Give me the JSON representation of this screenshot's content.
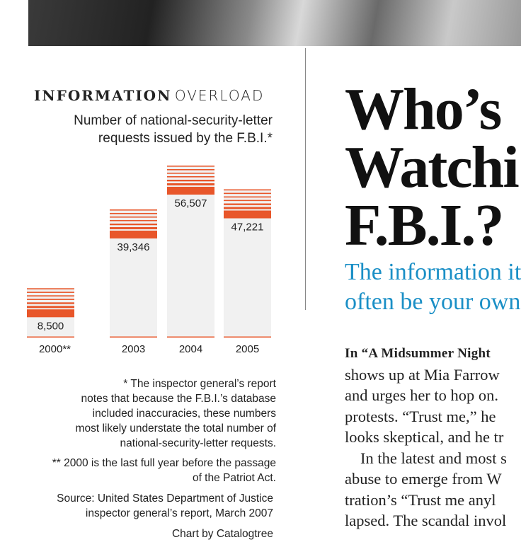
{
  "chart_data": {
    "type": "bar",
    "title_bold": "INFORMATION",
    "title_light": "OVERLOAD",
    "subtitle": [
      "Number of national-security-letter",
      "requests issued by the F.B.I.*"
    ],
    "categories": [
      "2000**",
      "2003",
      "2004",
      "2005"
    ],
    "values": [
      8500,
      39346,
      56507,
      47221
    ],
    "value_labels": [
      "8,500",
      "39,346",
      "56,507",
      "47,221"
    ],
    "color": "#e8562a",
    "footnotes": [
      [
        "* The inspector general’s report",
        "notes that because the F.B.I.’s database",
        "included inaccuracies, these numbers",
        "most likely understate the total number of",
        "national-security-letter requests."
      ],
      [
        "** 2000 is the last full year before the passage",
        "of the Patriot Act."
      ],
      [
        "Source: United States Department of Justice",
        "inspector general’s report, March 2007"
      ],
      [
        "Chart by Catalogtree"
      ]
    ]
  },
  "article": {
    "headline": [
      "Who’s",
      "Watchi",
      "F.B.I.?"
    ],
    "deck": [
      "The information it",
      "often be your own"
    ],
    "lead": "In “A Midsummer Night",
    "body": [
      "shows up at Mia Farrow",
      "and urges her to hop on.",
      "protests. “Trust me,” he",
      "looks skeptical, and he tr",
      "In the latest and most s",
      "abuse to emerge from W",
      "tration’s “Trust me anyl",
      "lapsed. The scandal invol"
    ]
  }
}
